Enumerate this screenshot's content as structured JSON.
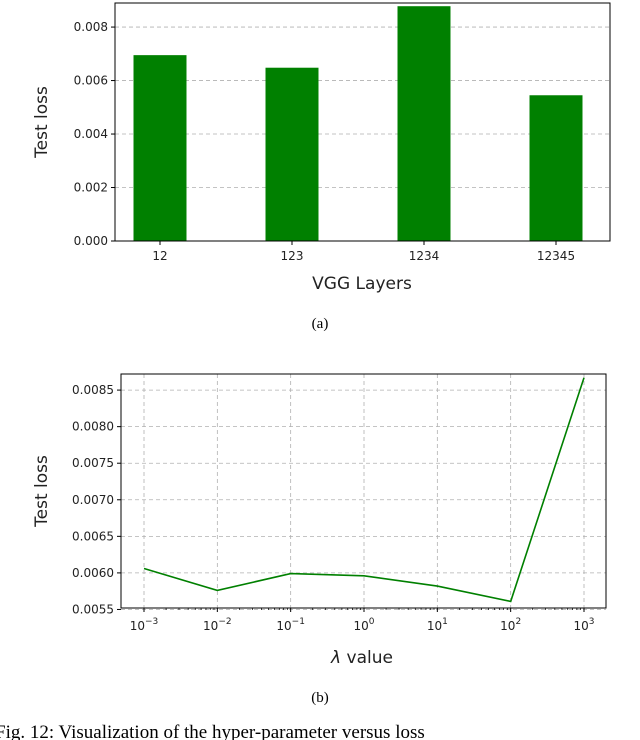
{
  "chart_data": [
    {
      "type": "bar",
      "categories": [
        "12",
        "123",
        "1234",
        "12345"
      ],
      "values": [
        0.00695,
        0.00648,
        0.00878,
        0.00545
      ],
      "xlabel": "VGG Layers",
      "ylabel": "Test loss",
      "ylim": [
        0,
        0.0089
      ],
      "yticks": [
        "0.000",
        "0.002",
        "0.004",
        "0.006",
        "0.008"
      ],
      "bar_color": "#008000",
      "grid": "horizontal dashed",
      "caption": "(a)"
    },
    {
      "type": "line",
      "x_ticks": [
        {
          "base": "10",
          "exp": "−3"
        },
        {
          "base": "10",
          "exp": "−2"
        },
        {
          "base": "10",
          "exp": "−1"
        },
        {
          "base": "10",
          "exp": "0"
        },
        {
          "base": "10",
          "exp": "1"
        },
        {
          "base": "10",
          "exp": "2"
        },
        {
          "base": "10",
          "exp": "3"
        }
      ],
      "x": [
        0.001,
        0.01,
        0.1,
        1,
        10,
        100,
        1000
      ],
      "values": [
        0.00606,
        0.00576,
        0.00599,
        0.00596,
        0.00582,
        0.00561,
        0.00867
      ],
      "xlabel_symbol": "λ",
      "xlabel_text": " value",
      "ylabel": "Test loss",
      "x_scale": "log",
      "ylim": [
        0.00552,
        0.00872
      ],
      "yticks": [
        "0.0055",
        "0.0060",
        "0.0065",
        "0.0070",
        "0.0075",
        "0.0080",
        "0.0085"
      ],
      "line_color": "#008000",
      "grid": "both dashed",
      "caption": "(b)"
    }
  ],
  "figure_caption": "Fig. 12: Visualization of the hyper-parameter versus loss"
}
